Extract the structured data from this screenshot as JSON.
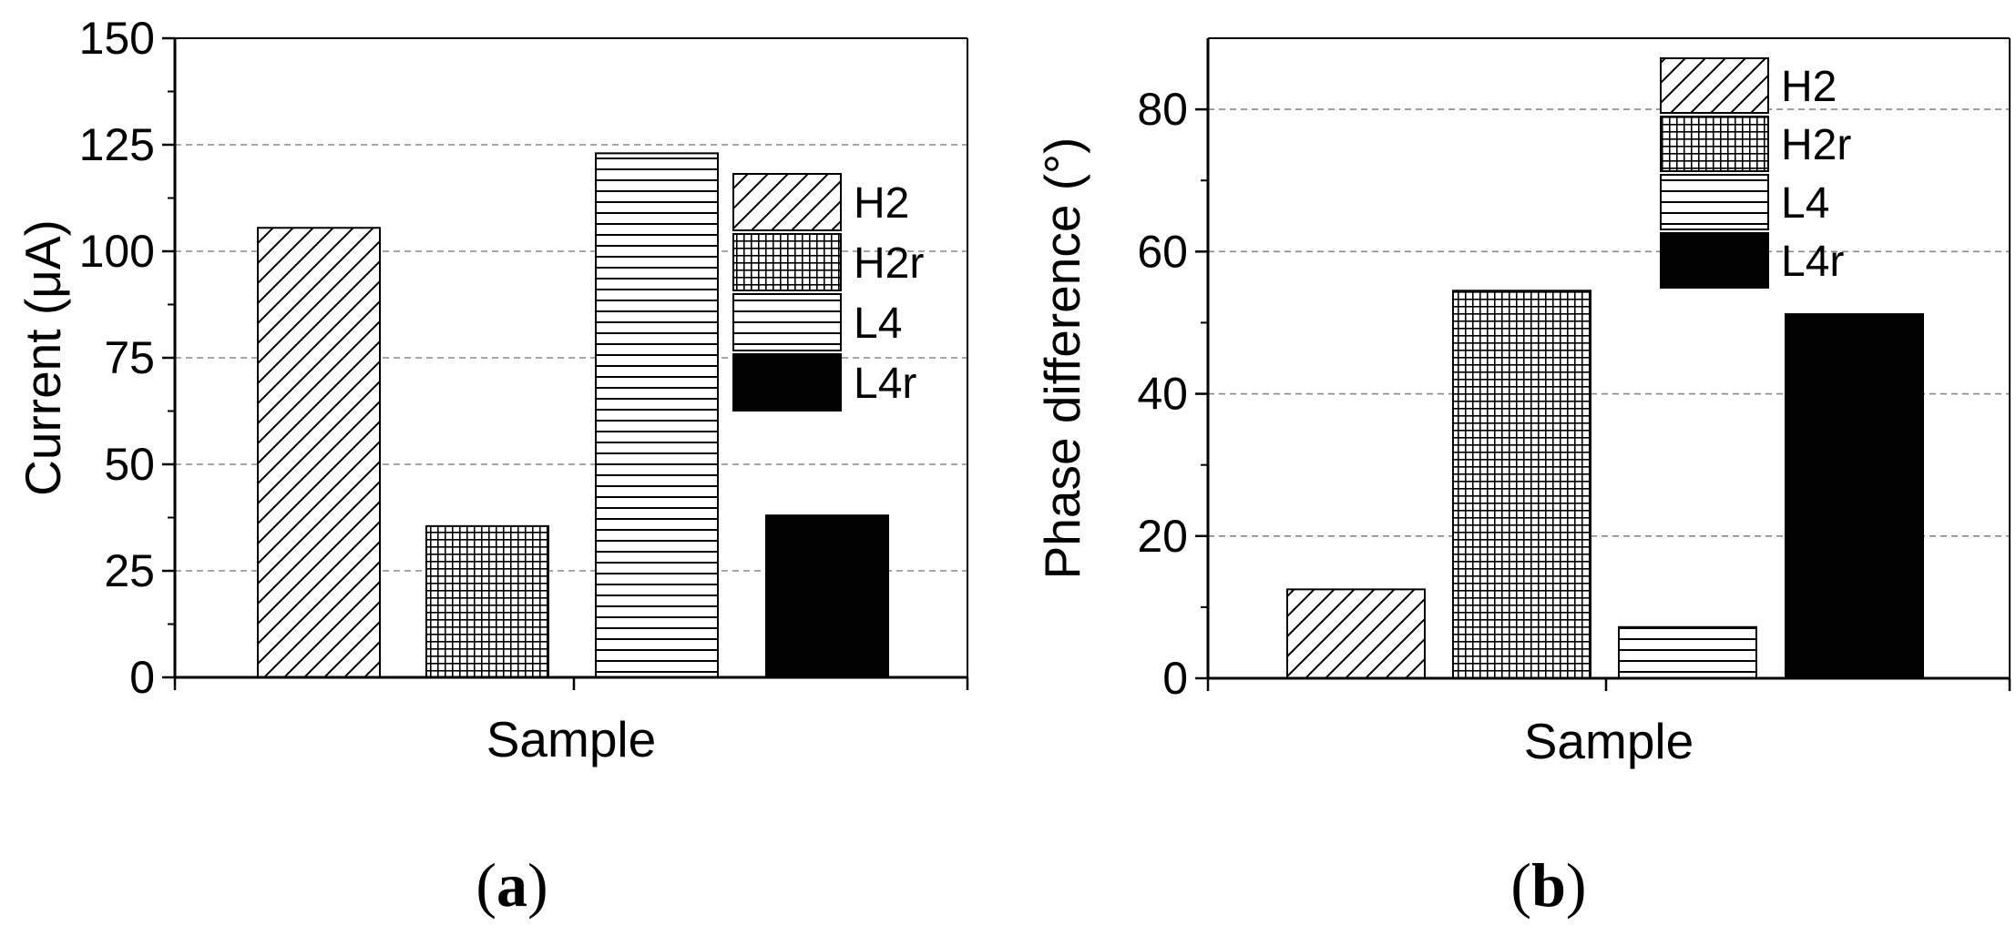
{
  "chart_data": [
    {
      "type": "bar",
      "panel_label": "a",
      "title": "",
      "xlabel": "Sample",
      "ylabel": "Current (μA)",
      "ylim": [
        0,
        150
      ],
      "yticks": [
        0,
        25,
        50,
        75,
        100,
        125,
        150
      ],
      "grid": true,
      "legend_position": "top-right",
      "series": [
        {
          "name": "H2",
          "value": 105.5,
          "pattern": "diagonal-hatch"
        },
        {
          "name": "H2r",
          "value": 35.5,
          "pattern": "crosshatch"
        },
        {
          "name": "L4",
          "value": 123,
          "pattern": "horizontal-lines"
        },
        {
          "name": "L4r",
          "value": 38,
          "pattern": "solid-black"
        }
      ]
    },
    {
      "type": "bar",
      "panel_label": "b",
      "title": "",
      "xlabel": "Sample",
      "ylabel": "Phase difference (°)",
      "ylim": [
        0,
        90
      ],
      "yticks": [
        0,
        20,
        40,
        60,
        80
      ],
      "grid": true,
      "legend_position": "top-right",
      "series": [
        {
          "name": "H2",
          "value": 12.5,
          "pattern": "diagonal-hatch"
        },
        {
          "name": "H2r",
          "value": 54.5,
          "pattern": "crosshatch"
        },
        {
          "name": "L4",
          "value": 7.2,
          "pattern": "horizontal-lines"
        },
        {
          "name": "L4r",
          "value": 51.2,
          "pattern": "solid-black"
        }
      ]
    }
  ]
}
